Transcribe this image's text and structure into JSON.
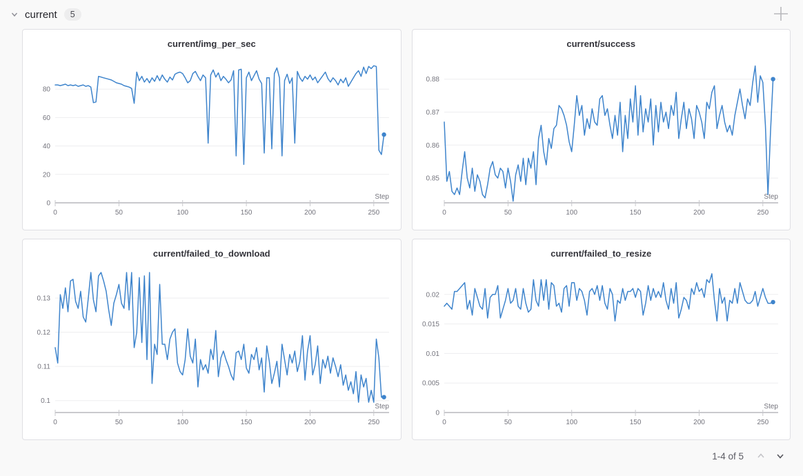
{
  "header": {
    "title": "current",
    "count": "5",
    "collapse_icon": "chevron-down",
    "add_icon": "plus"
  },
  "pagination": {
    "label": "1-4 of 5",
    "prev_icon": "chevron-up",
    "next_icon": "chevron-down",
    "prev_enabled": false,
    "next_enabled": true
  },
  "colors": {
    "line": "#3e84cc",
    "grid": "#ededef",
    "axis": "#c9c9cd",
    "tick_text": "#74747d",
    "title_text": "#33333a",
    "panel_border": "#dfdfe3",
    "panel_bg": "#ffffff",
    "page_bg": "#f9f9f9"
  },
  "chart_data": [
    {
      "type": "line",
      "title": "current/img_per_sec",
      "xlabel": "Step",
      "x_start": 0,
      "x_step": 2,
      "x_range": [
        0,
        262
      ],
      "x_ticks": [
        0,
        50,
        100,
        150,
        200,
        250
      ],
      "x_tick_labels": [
        "0",
        "50",
        "100",
        "150",
        "200",
        "250"
      ],
      "y_min": 0,
      "y_max": 101,
      "y_ticks": [
        0,
        20,
        40,
        60,
        80
      ],
      "y_tick_labels": [
        "0",
        "20",
        "40",
        "60",
        "80"
      ],
      "end_marker": true,
      "values": [
        83,
        83,
        82.5,
        83,
        83.5,
        82.5,
        83,
        82.5,
        83,
        82,
        82.5,
        83,
        82,
        82.5,
        81.5,
        70.5,
        71,
        89,
        88.5,
        88,
        87.5,
        87,
        86.5,
        85.5,
        84.5,
        84,
        83.5,
        82.5,
        82,
        81.5,
        80.5,
        70,
        92,
        86,
        89,
        85,
        87.5,
        84.5,
        88,
        85.5,
        89.5,
        86,
        90,
        87,
        85,
        88.5,
        86.5,
        90.5,
        91.5,
        92,
        91,
        88,
        84.5,
        86,
        91,
        92.5,
        89,
        86,
        90,
        88,
        42,
        90,
        93.5,
        88.5,
        91.5,
        86,
        89,
        87,
        84.5,
        86.5,
        93,
        33,
        93.5,
        94,
        27,
        88,
        92,
        86,
        89.5,
        93,
        87,
        84,
        35,
        88,
        88,
        38,
        91,
        95,
        88,
        33,
        86,
        90.5,
        84,
        88,
        42,
        92.5,
        88,
        85.5,
        89,
        87,
        90,
        86.5,
        88.5,
        84.5,
        87,
        89.5,
        92,
        87.5,
        85,
        88,
        86,
        83,
        87,
        84.5,
        88,
        82,
        85,
        88,
        91,
        93,
        89,
        95.5,
        91,
        96,
        94.5,
        96.5,
        96,
        37,
        34,
        48
      ]
    },
    {
      "type": "line",
      "title": "current/success",
      "xlabel": "Step",
      "x_start": 0,
      "x_step": 2,
      "x_range": [
        0,
        262
      ],
      "x_ticks": [
        0,
        50,
        100,
        150,
        200,
        250
      ],
      "x_tick_labels": [
        "0",
        "50",
        "100",
        "150",
        "200",
        "250"
      ],
      "y_min": 0.8425,
      "y_max": 0.886,
      "y_ticks": [
        0.85,
        0.86,
        0.87,
        0.88
      ],
      "y_tick_labels": [
        "0.85",
        "0.86",
        "0.87",
        "0.88"
      ],
      "end_marker": true,
      "values": [
        0.867,
        0.849,
        0.852,
        0.846,
        0.845,
        0.847,
        0.845,
        0.852,
        0.858,
        0.85,
        0.847,
        0.853,
        0.846,
        0.851,
        0.849,
        0.845,
        0.844,
        0.848,
        0.853,
        0.855,
        0.851,
        0.85,
        0.853,
        0.852,
        0.847,
        0.853,
        0.849,
        0.843,
        0.851,
        0.854,
        0.849,
        0.856,
        0.848,
        0.856,
        0.853,
        0.858,
        0.848,
        0.862,
        0.866,
        0.858,
        0.854,
        0.862,
        0.859,
        0.865,
        0.866,
        0.872,
        0.871,
        0.869,
        0.866,
        0.861,
        0.858,
        0.866,
        0.875,
        0.869,
        0.872,
        0.863,
        0.868,
        0.865,
        0.871,
        0.867,
        0.866,
        0.874,
        0.875,
        0.869,
        0.871,
        0.866,
        0.862,
        0.869,
        0.863,
        0.873,
        0.858,
        0.869,
        0.862,
        0.874,
        0.867,
        0.878,
        0.863,
        0.875,
        0.864,
        0.871,
        0.867,
        0.874,
        0.86,
        0.872,
        0.864,
        0.873,
        0.867,
        0.87,
        0.865,
        0.872,
        0.869,
        0.876,
        0.862,
        0.868,
        0.873,
        0.865,
        0.871,
        0.868,
        0.862,
        0.872,
        0.87,
        0.867,
        0.862,
        0.873,
        0.871,
        0.876,
        0.878,
        0.865,
        0.869,
        0.872,
        0.867,
        0.864,
        0.866,
        0.863,
        0.869,
        0.873,
        0.877,
        0.872,
        0.868,
        0.874,
        0.872,
        0.879,
        0.884,
        0.873,
        0.881,
        0.879,
        0.866,
        0.845,
        0.864,
        0.88
      ]
    },
    {
      "type": "line",
      "title": "current/failed_to_download",
      "xlabel": "Step",
      "x_start": 0,
      "x_step": 2,
      "x_range": [
        0,
        262
      ],
      "x_ticks": [
        0,
        50,
        100,
        150,
        200,
        250
      ],
      "x_tick_labels": [
        "0",
        "50",
        "100",
        "150",
        "200",
        "250"
      ],
      "y_min": 0.0965,
      "y_max": 0.1385,
      "y_ticks": [
        0.1,
        0.11,
        0.12,
        0.13
      ],
      "y_tick_labels": [
        "0.1",
        "0.11",
        "0.12",
        "0.13"
      ],
      "end_marker": true,
      "values": [
        0.1155,
        0.111,
        0.131,
        0.127,
        0.133,
        0.126,
        0.135,
        0.1355,
        0.129,
        0.127,
        0.132,
        0.1245,
        0.123,
        0.13,
        0.1375,
        0.1295,
        0.126,
        0.1365,
        0.1375,
        0.135,
        0.132,
        0.1265,
        0.122,
        0.1285,
        0.131,
        0.134,
        0.1285,
        0.127,
        0.1375,
        0.1265,
        0.1375,
        0.1155,
        0.12,
        0.136,
        0.117,
        0.1365,
        0.112,
        0.1375,
        0.105,
        0.1165,
        0.1135,
        0.134,
        0.1165,
        0.1165,
        0.112,
        0.118,
        0.12,
        0.121,
        0.111,
        0.1085,
        0.1075,
        0.112,
        0.121,
        0.113,
        0.111,
        0.118,
        0.104,
        0.112,
        0.109,
        0.1105,
        0.108,
        0.115,
        0.112,
        0.1205,
        0.107,
        0.1125,
        0.1145,
        0.112,
        0.11,
        0.1075,
        0.106,
        0.114,
        0.1145,
        0.112,
        0.1165,
        0.1095,
        0.108,
        0.1135,
        0.112,
        0.1155,
        0.109,
        0.1125,
        0.1025,
        0.116,
        0.1115,
        0.105,
        0.108,
        0.1115,
        0.104,
        0.1165,
        0.112,
        0.1075,
        0.1135,
        0.111,
        0.1145,
        0.1085,
        0.1115,
        0.119,
        0.106,
        0.1145,
        0.119,
        0.1075,
        0.1105,
        0.116,
        0.105,
        0.112,
        0.1095,
        0.113,
        0.108,
        0.1125,
        0.11,
        0.107,
        0.1105,
        0.1045,
        0.1075,
        0.103,
        0.1055,
        0.102,
        0.1085,
        0.0995,
        0.1075,
        0.104,
        0.1065,
        0.0995,
        0.103,
        0.0995,
        0.118,
        0.1125,
        0.101,
        0.101
      ]
    },
    {
      "type": "line",
      "title": "current/failed_to_resize",
      "xlabel": "Step",
      "x_start": 0,
      "x_step": 2,
      "x_range": [
        0,
        262
      ],
      "x_ticks": [
        0,
        50,
        100,
        150,
        200,
        250
      ],
      "x_tick_labels": [
        "0",
        "50",
        "100",
        "150",
        "200",
        "250"
      ],
      "y_min": 0,
      "y_max": 0.0243,
      "y_ticks": [
        0,
        0.005,
        0.01,
        0.015,
        0.02
      ],
      "y_tick_labels": [
        "0",
        "0.005",
        "0.01",
        "0.015",
        "0.02"
      ],
      "end_marker": true,
      "values": [
        0.018,
        0.0185,
        0.018,
        0.0175,
        0.0205,
        0.0205,
        0.021,
        0.0215,
        0.022,
        0.0175,
        0.019,
        0.0165,
        0.021,
        0.0195,
        0.018,
        0.0175,
        0.021,
        0.016,
        0.0195,
        0.02,
        0.02,
        0.0215,
        0.016,
        0.0175,
        0.019,
        0.021,
        0.0185,
        0.019,
        0.021,
        0.018,
        0.0175,
        0.021,
        0.0185,
        0.017,
        0.0175,
        0.0225,
        0.019,
        0.018,
        0.0225,
        0.019,
        0.0225,
        0.0175,
        0.022,
        0.0215,
        0.018,
        0.0185,
        0.017,
        0.021,
        0.0215,
        0.018,
        0.022,
        0.022,
        0.019,
        0.021,
        0.0205,
        0.019,
        0.0165,
        0.0205,
        0.021,
        0.02,
        0.0215,
        0.019,
        0.0215,
        0.0185,
        0.0175,
        0.021,
        0.02,
        0.0155,
        0.019,
        0.0185,
        0.021,
        0.019,
        0.0205,
        0.0205,
        0.021,
        0.0195,
        0.021,
        0.0205,
        0.0165,
        0.0185,
        0.0215,
        0.019,
        0.021,
        0.0195,
        0.0205,
        0.0195,
        0.022,
        0.019,
        0.0175,
        0.021,
        0.0185,
        0.022,
        0.016,
        0.0175,
        0.0195,
        0.019,
        0.0175,
        0.021,
        0.02,
        0.022,
        0.0205,
        0.021,
        0.0195,
        0.0225,
        0.022,
        0.0235,
        0.019,
        0.0155,
        0.021,
        0.0185,
        0.0195,
        0.0155,
        0.019,
        0.0185,
        0.021,
        0.0185,
        0.022,
        0.0205,
        0.019,
        0.0185,
        0.0185,
        0.019,
        0.0205,
        0.018,
        0.0195,
        0.021,
        0.0195,
        0.0185,
        0.0185,
        0.0187
      ]
    }
  ]
}
